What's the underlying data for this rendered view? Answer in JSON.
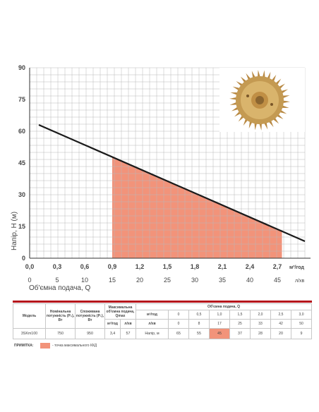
{
  "chart_data": {
    "type": "line",
    "title": "",
    "ylabel": "Напір, H (м)",
    "xlabel": "Об'ємна подача, Q",
    "xlim": [
      0,
      3.0
    ],
    "ylim": [
      0,
      90
    ],
    "x_unit": "м³/год",
    "x2_unit": "л/хв",
    "yticks": [
      "0",
      "15",
      "30",
      "45",
      "60",
      "75",
      "90"
    ],
    "xticks": [
      "0,0",
      "0,3",
      "0,6",
      "0,9",
      "1,2",
      "1,5",
      "1,8",
      "2,1",
      "2,4",
      "2,7"
    ],
    "x2ticks": [
      "0",
      "5",
      "10",
      "15",
      "20",
      "25",
      "30",
      "35",
      "40",
      "45"
    ],
    "grid": true,
    "series": [
      {
        "x": [
          0.1,
          3.0
        ],
        "y": [
          63,
          8
        ],
        "color": "#1a1a1a"
      }
    ],
    "highlight_region": {
      "x": [
        0.9,
        2.75
      ],
      "color": "#f2937a"
    }
  },
  "table": {
    "h_model": "Модель",
    "h_nominal": "Номінальна потужність (P₂), Вт",
    "h_consumed": "Споживана потужність (P₁), Вт",
    "h_maxflow": "Максимальна об'ємна подача, Qmax",
    "h_flow": "Об'ємна подача, Q",
    "u_m3": "м³/год",
    "u_lpm": "л/хв",
    "u_m3_row": "м³/год",
    "u_lpm_row": "л/хв",
    "flow_m3": [
      "0",
      "0,5",
      "1,0",
      "1,5",
      "2,0",
      "2,5",
      "3,0"
    ],
    "flow_lpm": [
      "0",
      "8",
      "17",
      "25",
      "33",
      "42",
      "50"
    ],
    "model": "3SKm100",
    "nominal": "750",
    "consumed": "950",
    "qmax_m3": "3,4",
    "qmax_lpm": "57",
    "head_label": "Напір, м",
    "head": [
      "65",
      "55",
      "45",
      "37",
      "28",
      "20",
      "9"
    ],
    "highlight_index": 2
  },
  "note": {
    "label": "ПРИМІТКА:",
    "text": "- точка максимального ККД"
  }
}
